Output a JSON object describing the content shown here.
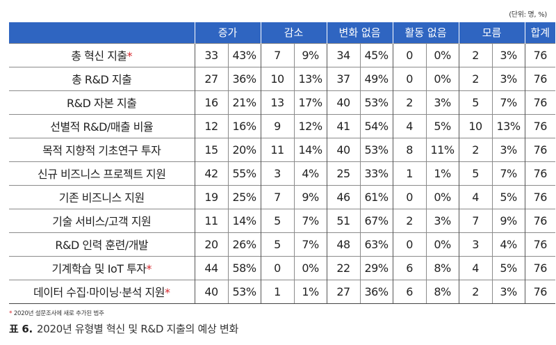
{
  "unit": "(단위: 명, %)",
  "header": {
    "label": "",
    "groups": [
      "증가",
      "감소",
      "변화 없음",
      "활동 없음",
      "모름"
    ],
    "total": "합계"
  },
  "rows": [
    {
      "label": "총 혁신 지출",
      "star": "*",
      "cells": [
        "33",
        "43%",
        "7",
        "9%",
        "34",
        "45%",
        "0",
        "0%",
        "2",
        "3%"
      ],
      "total": "76"
    },
    {
      "label": "총 R&D 지출",
      "star": "",
      "cells": [
        "27",
        "36%",
        "10",
        "13%",
        "37",
        "49%",
        "0",
        "0%",
        "2",
        "3%"
      ],
      "total": "76"
    },
    {
      "label": "R&D 자본 지출",
      "star": "",
      "cells": [
        "16",
        "21%",
        "13",
        "17%",
        "40",
        "53%",
        "2",
        "3%",
        "5",
        "7%"
      ],
      "total": "76"
    },
    {
      "label": "선별적 R&D/매출 비율",
      "star": "",
      "cells": [
        "12",
        "16%",
        "9",
        "12%",
        "41",
        "54%",
        "4",
        "5%",
        "10",
        "13%"
      ],
      "total": "76"
    },
    {
      "label": "목적 지향적 기초연구 투자",
      "star": "",
      "cells": [
        "15",
        "20%",
        "11",
        "14%",
        "40",
        "53%",
        "8",
        "11%",
        "2",
        "3%"
      ],
      "total": "76"
    },
    {
      "label": "신규 비즈니스 프로젝트 지원",
      "star": "",
      "cells": [
        "42",
        "55%",
        "3",
        "4%",
        "25",
        "33%",
        "1",
        "1%",
        "5",
        "7%"
      ],
      "total": "76"
    },
    {
      "label": "기존 비즈니스 지원",
      "star": "",
      "cells": [
        "19",
        "25%",
        "7",
        "9%",
        "46",
        "61%",
        "0",
        "0%",
        "4",
        "5%"
      ],
      "total": "76"
    },
    {
      "label": "기술 서비스/고객 지원",
      "star": "",
      "cells": [
        "11",
        "14%",
        "5",
        "7%",
        "51",
        "67%",
        "2",
        "3%",
        "7",
        "9%"
      ],
      "total": "76"
    },
    {
      "label": "R&D 인력 훈련/개발",
      "star": "",
      "cells": [
        "20",
        "26%",
        "5",
        "7%",
        "48",
        "63%",
        "0",
        "0%",
        "3",
        "4%"
      ],
      "total": "76"
    },
    {
      "label": "기계학습 및 IoT 투자",
      "star": "*",
      "cells": [
        "44",
        "58%",
        "0",
        "0%",
        "22",
        "29%",
        "6",
        "8%",
        "4",
        "5%"
      ],
      "total": "76"
    },
    {
      "label": "데이터 수집·마이닝·분석 지원",
      "star": "*",
      "cells": [
        "40",
        "53%",
        "1",
        "1%",
        "27",
        "36%",
        "6",
        "8%",
        "2",
        "3%"
      ],
      "total": "76"
    }
  ],
  "note": {
    "star": "*",
    "text": " 2020년 설문조사에 새로 추가된 범주"
  },
  "caption": {
    "tag": "표 6.",
    "text": "2020년 유형별 혁신 및 R&D 지출의 예상 변화"
  }
}
